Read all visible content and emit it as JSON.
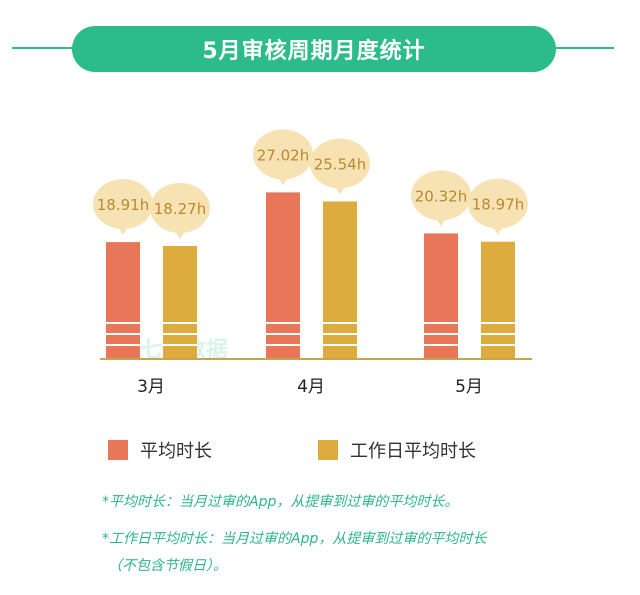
{
  "title": "5月审核周期月度统计",
  "colors": {
    "accent": "#2cbb8b",
    "series_avg": "#e8775a",
    "series_workday": "#deab3f",
    "bubble": "#f6e2b3",
    "bubble_text": "#b98a2e"
  },
  "chart_data": {
    "type": "bar",
    "title": "5月审核周期月度统计",
    "categories": [
      "3月",
      "4月",
      "5月"
    ],
    "series": [
      {
        "name": "平均时长",
        "values": [
          18.91,
          27.02,
          20.32
        ],
        "labels": [
          "18.91h",
          "27.02h",
          "20.32h"
        ]
      },
      {
        "name": "工作日平均时长",
        "values": [
          18.27,
          25.54,
          18.97
        ],
        "labels": [
          "18.27h",
          "25.54h",
          "18.97h"
        ]
      }
    ],
    "unit": "h",
    "ylim": [
      0,
      30
    ],
    "grid": false,
    "legend": "bottom"
  },
  "legend": {
    "avg": "平均时长",
    "workday": "工作日平均时长"
  },
  "notes": {
    "line1": "*平均时长：当月过审的App，从提审到过审的平均时长。",
    "line2": "*工作日平均时长：当月过审的App，从提审到过审的平均时长",
    "line3": "（不包含节假日）。"
  },
  "watermark": "七麦数据"
}
